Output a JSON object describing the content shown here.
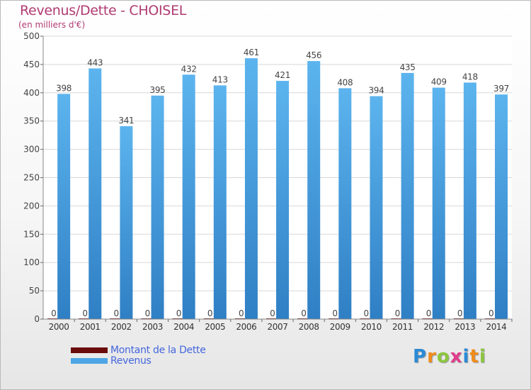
{
  "chart_data": {
    "type": "bar",
    "title": "Revenus/Dette - CHOISEL",
    "subtitle": "(en milliers d'€)",
    "categories": [
      "2000",
      "2001",
      "2002",
      "2003",
      "2004",
      "2005",
      "2006",
      "2007",
      "2008",
      "2009",
      "2010",
      "2011",
      "2012",
      "2013",
      "2014"
    ],
    "series": [
      {
        "name": "Montant de la Dette",
        "color": "#6b0a0a",
        "values": [
          0,
          0,
          0,
          0,
          0,
          0,
          0,
          0,
          0,
          0,
          0,
          0,
          0,
          0,
          0
        ]
      },
      {
        "name": "Revenus",
        "color": "#4ea6e6",
        "values": [
          398,
          443,
          341,
          395,
          432,
          413,
          461,
          421,
          456,
          408,
          394,
          435,
          409,
          418,
          397
        ]
      }
    ],
    "ylim": [
      0,
      500
    ],
    "yticks": [
      0,
      50,
      100,
      150,
      200,
      250,
      300,
      350,
      400,
      450,
      500
    ],
    "grid": true,
    "legend": "bottom-left"
  },
  "logo": {
    "letters": [
      {
        "char": "P",
        "color": "#2b8ad6"
      },
      {
        "char": "r",
        "color": "#f08c1c"
      },
      {
        "char": "o",
        "color": "#8cc63e"
      },
      {
        "char": "x",
        "color": "#e23c8c"
      },
      {
        "char": "i",
        "color": "#2b8ad6"
      },
      {
        "char": "t",
        "color": "#f08c1c"
      },
      {
        "char": "i",
        "color": "#8cc63e"
      }
    ]
  }
}
